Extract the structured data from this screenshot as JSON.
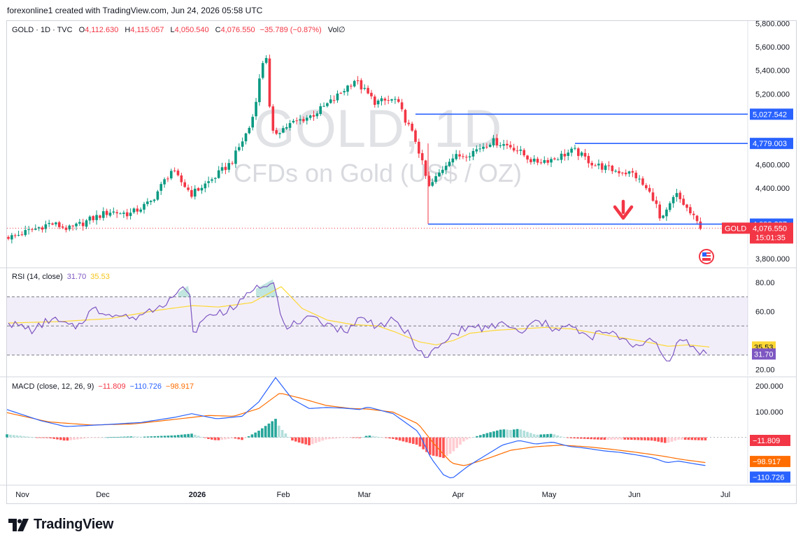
{
  "header": {
    "credit": "forexonline1 created with TradingView.com, Jun 24, 2026 05:58 UTC"
  },
  "footer": {
    "brand": "TradingView"
  },
  "legend": {
    "symbol": "GOLD · 1D · TVC",
    "o_label": "O",
    "o_value": "4,112.630",
    "h_label": "H",
    "h_value": "4,115.057",
    "l_label": "L",
    "l_value": "4,050.540",
    "c_label": "C",
    "c_value": "4,076.550",
    "change": "−35.789 (−0.87%)",
    "vol": "Vol∅"
  },
  "watermark": {
    "ticker": "GOLD, 1D",
    "description": "CFDs on Gold (US$ / OZ)"
  },
  "colors": {
    "up": "#089981",
    "down": "#f23645",
    "blue": "#2962ff",
    "rsi": "#7e57c2",
    "rsi_ma": "#fdd835",
    "macd_signal": "#ff6d00"
  },
  "chart_data": [
    {
      "type": "candlestick",
      "title": "GOLD · 1D · TVC",
      "y_ticks": [
        "5,800.000",
        "5,600.000",
        "5,400.000",
        "5,200.000",
        "4,800.000",
        "4,600.000",
        "4,400.000",
        "4,000.000",
        "3,800.000"
      ],
      "x_ticks": [
        "Nov",
        "Dec",
        "2026",
        "Feb",
        "Mar",
        "Apr",
        "May",
        "Jun",
        "Jul"
      ],
      "ylim": [
        3740,
        5820
      ],
      "levels": [
        {
          "label": "5,027.542",
          "value": 5027.542
        },
        {
          "label": "4,779.003",
          "value": 4779.003
        },
        {
          "label": "4,093.287",
          "value": 4093.287
        }
      ],
      "last_price": {
        "label": "4,076.550",
        "value": 4076.55,
        "symbol": "GOLD",
        "countdown": "15:01:35"
      },
      "trend": [
        [
          "Oct 24",
          3990
        ],
        [
          "Oct 31",
          3985
        ],
        [
          "Nov 7",
          4040
        ],
        [
          "Nov 14",
          4100
        ],
        [
          "Nov 21",
          4050
        ],
        [
          "Nov 28",
          4130
        ],
        [
          "Dec 5",
          4200
        ],
        [
          "Dec 12",
          4180
        ],
        [
          "Dec 19",
          4280
        ],
        [
          "Dec 26",
          4550
        ],
        [
          "Jan 2",
          4350
        ],
        [
          "Jan 9",
          4470
        ],
        [
          "Jan 16",
          4620
        ],
        [
          "Jan 23",
          4950
        ],
        [
          "Jan 28",
          5600
        ],
        [
          "Jan 30",
          4850
        ],
        [
          "Feb 6",
          4950
        ],
        [
          "Feb 13",
          5020
        ],
        [
          "Feb 20",
          5150
        ],
        [
          "Feb 27",
          5320
        ],
        [
          "Mar 6",
          5130
        ],
        [
          "Mar 13",
          5150
        ],
        [
          "Mar 20",
          4780
        ],
        [
          "Mar 24",
          4400
        ],
        [
          "Mar 31",
          4650
        ],
        [
          "Apr 7",
          4700
        ],
        [
          "Apr 14",
          4800
        ],
        [
          "Apr 21",
          4750
        ],
        [
          "Apr 28",
          4620
        ],
        [
          "May 5",
          4650
        ],
        [
          "May 12",
          4720
        ],
        [
          "May 19",
          4600
        ],
        [
          "May 26",
          4550
        ],
        [
          "Jun 2",
          4520
        ],
        [
          "Jun 9",
          4300
        ],
        [
          "Jun 11",
          4100
        ],
        [
          "Jun 16",
          4350
        ],
        [
          "Jun 19",
          4250
        ],
        [
          "Jun 24",
          4076.55
        ]
      ]
    },
    {
      "type": "line",
      "title": "RSI (14, close)",
      "legend": [
        "31.70",
        "35.53"
      ],
      "y_ticks": [
        "80.00",
        "60.00",
        "20.00"
      ],
      "bands": [
        30,
        50,
        70
      ],
      "ylim": [
        16,
        90
      ],
      "series": [
        {
          "name": "RSI",
          "last": 31.7,
          "last_label": "31.70",
          "values": [
            [
              0,
              52
            ],
            [
              3,
              47
            ],
            [
              5,
              55
            ],
            [
              8,
              48
            ],
            [
              10,
              62
            ],
            [
              12,
              58
            ],
            [
              15,
              56
            ],
            [
              18,
              64
            ],
            [
              20,
              72
            ],
            [
              21.5,
              78
            ],
            [
              22,
              46
            ],
            [
              24,
              58
            ],
            [
              27,
              62
            ],
            [
              29,
              74
            ],
            [
              31.5,
              82
            ],
            [
              33,
              47
            ],
            [
              35,
              55
            ],
            [
              38,
              52
            ],
            [
              40,
              46
            ],
            [
              42,
              56
            ],
            [
              44,
              50
            ],
            [
              46,
              54
            ],
            [
              48,
              42
            ],
            [
              49.5,
              28
            ],
            [
              51,
              34
            ],
            [
              53,
              44
            ],
            [
              55,
              50
            ],
            [
              57,
              48
            ],
            [
              59,
              52
            ],
            [
              61,
              44
            ],
            [
              63,
              54
            ],
            [
              65,
              48
            ],
            [
              67,
              50
            ],
            [
              69,
              42
            ],
            [
              71,
              46
            ],
            [
              73,
              42
            ],
            [
              75,
              36
            ],
            [
              77,
              40
            ],
            [
              78.6,
              24
            ],
            [
              79.5,
              38
            ],
            [
              80.5,
              40
            ],
            [
              82,
              33
            ],
            [
              83.5,
              31.7
            ]
          ]
        },
        {
          "name": "RSI-based MA",
          "last": 35.53,
          "last_label": "35.53",
          "values": [
            [
              0,
              52
            ],
            [
              6,
              53
            ],
            [
              12,
              55
            ],
            [
              18,
              61
            ],
            [
              22,
              64
            ],
            [
              25,
              63
            ],
            [
              29,
              66
            ],
            [
              32.5,
              77
            ],
            [
              35,
              62
            ],
            [
              38,
              54
            ],
            [
              41,
              51
            ],
            [
              44,
              50
            ],
            [
              46,
              46
            ],
            [
              49,
              39
            ],
            [
              51,
              37
            ],
            [
              53,
              40
            ],
            [
              55,
              45
            ],
            [
              58,
              47
            ],
            [
              61,
              48
            ],
            [
              64,
              49
            ],
            [
              67,
              48
            ],
            [
              70,
              45
            ],
            [
              73,
              42
            ],
            [
              76,
              39
            ],
            [
              78.6,
              36
            ],
            [
              81,
              37
            ],
            [
              83.5,
              35.53
            ]
          ]
        }
      ]
    },
    {
      "type": "line",
      "title": "MACD (close, 12, 26, 9)",
      "legend": [
        "−11.809",
        "−110.726",
        "−98.917"
      ],
      "y_ticks": [
        "200.000",
        "100.000"
      ],
      "ylim": [
        -180,
        235
      ],
      "series": [
        {
          "name": "MACD",
          "last": -110.726,
          "last_label": "−110.726",
          "values": [
            [
              0,
              108
            ],
            [
              4,
              65
            ],
            [
              7,
              42
            ],
            [
              12,
              50
            ],
            [
              16,
              58
            ],
            [
              20,
              78
            ],
            [
              22,
              92
            ],
            [
              25,
              72
            ],
            [
              28,
              82
            ],
            [
              30,
              138
            ],
            [
              32,
              232
            ],
            [
              34,
              148
            ],
            [
              36,
              112
            ],
            [
              38,
              116
            ],
            [
              40,
              114
            ],
            [
              42,
              108
            ],
            [
              43,
              118
            ],
            [
              46,
              92
            ],
            [
              49,
              22
            ],
            [
              50.5,
              -80
            ],
            [
              52,
              -145
            ],
            [
              53,
              -160
            ],
            [
              55,
              -110
            ],
            [
              57,
              -70
            ],
            [
              59,
              -30
            ],
            [
              61,
              -12
            ],
            [
              63,
              -26
            ],
            [
              65,
              -18
            ],
            [
              67,
              -35
            ],
            [
              69,
              -42
            ],
            [
              71,
              -52
            ],
            [
              73,
              -58
            ],
            [
              75,
              -68
            ],
            [
              77,
              -80
            ],
            [
              78.6,
              -98
            ],
            [
              80,
              -92
            ],
            [
              82,
              -103
            ],
            [
              83.5,
              -110.726
            ]
          ]
        },
        {
          "name": "Signal",
          "last": -98.917,
          "last_label": "−98.917",
          "values": [
            [
              0,
              96
            ],
            [
              5,
              60
            ],
            [
              10,
              48
            ],
            [
              15,
              52
            ],
            [
              20,
              70
            ],
            [
              24,
              85
            ],
            [
              27,
              82
            ],
            [
              30,
              112
            ],
            [
              32.5,
              172
            ],
            [
              35,
              152
            ],
            [
              38,
              124
            ],
            [
              41,
              112
            ],
            [
              43,
              110
            ],
            [
              46,
              98
            ],
            [
              49,
              52
            ],
            [
              51,
              -30
            ],
            [
              53,
              -100
            ],
            [
              54.5,
              -110
            ],
            [
              57,
              -85
            ],
            [
              60,
              -50
            ],
            [
              63,
              -36
            ],
            [
              66,
              -30
            ],
            [
              69,
              -36
            ],
            [
              72,
              -46
            ],
            [
              75,
              -58
            ],
            [
              78,
              -72
            ],
            [
              80.5,
              -86
            ],
            [
              83.5,
              -98.917
            ]
          ]
        },
        {
          "name": "Histogram",
          "last": -11.809,
          "last_label": "−11.809"
        }
      ]
    }
  ]
}
